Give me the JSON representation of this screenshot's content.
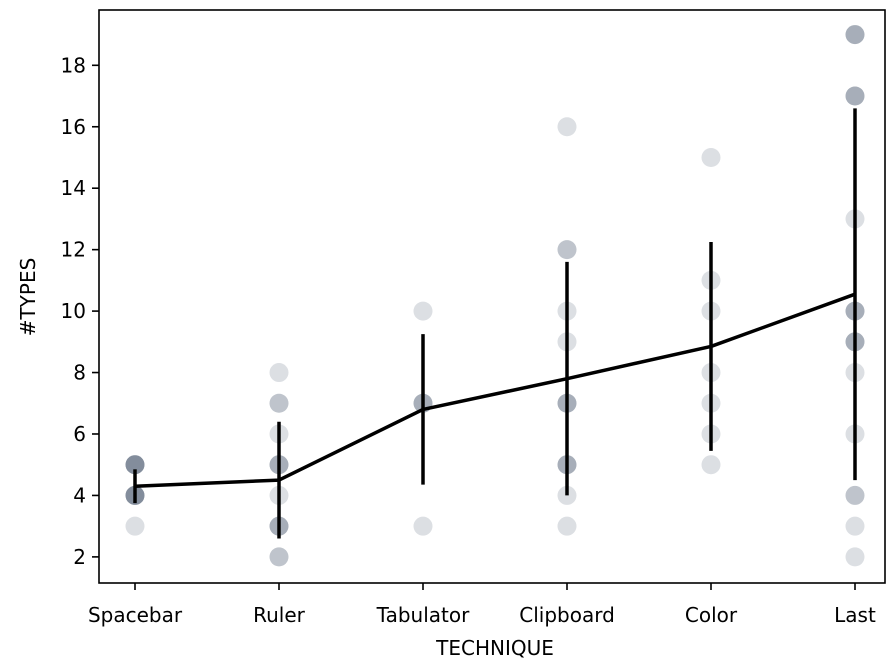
{
  "chart_data": {
    "type": "scatter",
    "xlabel": "TECHNIQUE",
    "ylabel": "#TYPES",
    "categories": [
      "Spacebar",
      "Ruler",
      "Tabulator",
      "Clipboard",
      "Color",
      "Last"
    ],
    "ylim": [
      1.15,
      19.8
    ],
    "yticks": [
      2,
      4,
      6,
      8,
      10,
      12,
      14,
      16,
      18
    ],
    "grid": false,
    "points": [
      {
        "category": "Spacebar",
        "y": 3,
        "count": 1
      },
      {
        "category": "Spacebar",
        "y": 4,
        "count": 5
      },
      {
        "category": "Spacebar",
        "y": 5,
        "count": 5
      },
      {
        "category": "Ruler",
        "y": 2,
        "count": 2
      },
      {
        "category": "Ruler",
        "y": 3,
        "count": 3
      },
      {
        "category": "Ruler",
        "y": 4,
        "count": 1
      },
      {
        "category": "Ruler",
        "y": 5,
        "count": 3
      },
      {
        "category": "Ruler",
        "y": 6,
        "count": 1
      },
      {
        "category": "Ruler",
        "y": 7,
        "count": 2
      },
      {
        "category": "Ruler",
        "y": 8,
        "count": 1
      },
      {
        "category": "Tabulator",
        "y": 3,
        "count": 1
      },
      {
        "category": "Tabulator",
        "y": 7,
        "count": 3
      },
      {
        "category": "Tabulator",
        "y": 10,
        "count": 1
      },
      {
        "category": "Clipboard",
        "y": 3,
        "count": 1
      },
      {
        "category": "Clipboard",
        "y": 4,
        "count": 1
      },
      {
        "category": "Clipboard",
        "y": 5,
        "count": 3
      },
      {
        "category": "Clipboard",
        "y": 7,
        "count": 3
      },
      {
        "category": "Clipboard",
        "y": 9,
        "count": 1
      },
      {
        "category": "Clipboard",
        "y": 10,
        "count": 1
      },
      {
        "category": "Clipboard",
        "y": 12,
        "count": 2
      },
      {
        "category": "Clipboard",
        "y": 16,
        "count": 1
      },
      {
        "category": "Color",
        "y": 5,
        "count": 1
      },
      {
        "category": "Color",
        "y": 6,
        "count": 1
      },
      {
        "category": "Color",
        "y": 7,
        "count": 1
      },
      {
        "category": "Color",
        "y": 8,
        "count": 1
      },
      {
        "category": "Color",
        "y": 10,
        "count": 1
      },
      {
        "category": "Color",
        "y": 11,
        "count": 1
      },
      {
        "category": "Color",
        "y": 15,
        "count": 1
      },
      {
        "category": "Last",
        "y": 2,
        "count": 1
      },
      {
        "category": "Last",
        "y": 3,
        "count": 1
      },
      {
        "category": "Last",
        "y": 4,
        "count": 2
      },
      {
        "category": "Last",
        "y": 6,
        "count": 1
      },
      {
        "category": "Last",
        "y": 8,
        "count": 1
      },
      {
        "category": "Last",
        "y": 9,
        "count": 3
      },
      {
        "category": "Last",
        "y": 10,
        "count": 3
      },
      {
        "category": "Last",
        "y": 13,
        "count": 1
      },
      {
        "category": "Last",
        "y": 17,
        "count": 3
      },
      {
        "category": "Last",
        "y": 19,
        "count": 3
      }
    ],
    "mean_line": [
      4.3,
      4.5,
      6.8,
      7.8,
      8.85,
      10.55
    ],
    "error_bars": [
      {
        "low": 3.75,
        "high": 4.85
      },
      {
        "low": 2.6,
        "high": 6.4
      },
      {
        "low": 4.35,
        "high": 9.25
      },
      {
        "low": 4.0,
        "high": 11.6
      },
      {
        "low": 5.45,
        "high": 12.25
      },
      {
        "low": 4.5,
        "high": 16.6
      }
    ],
    "colors": {
      "point": "#3d4f63",
      "line": "#000000",
      "axis": "#000000"
    }
  }
}
